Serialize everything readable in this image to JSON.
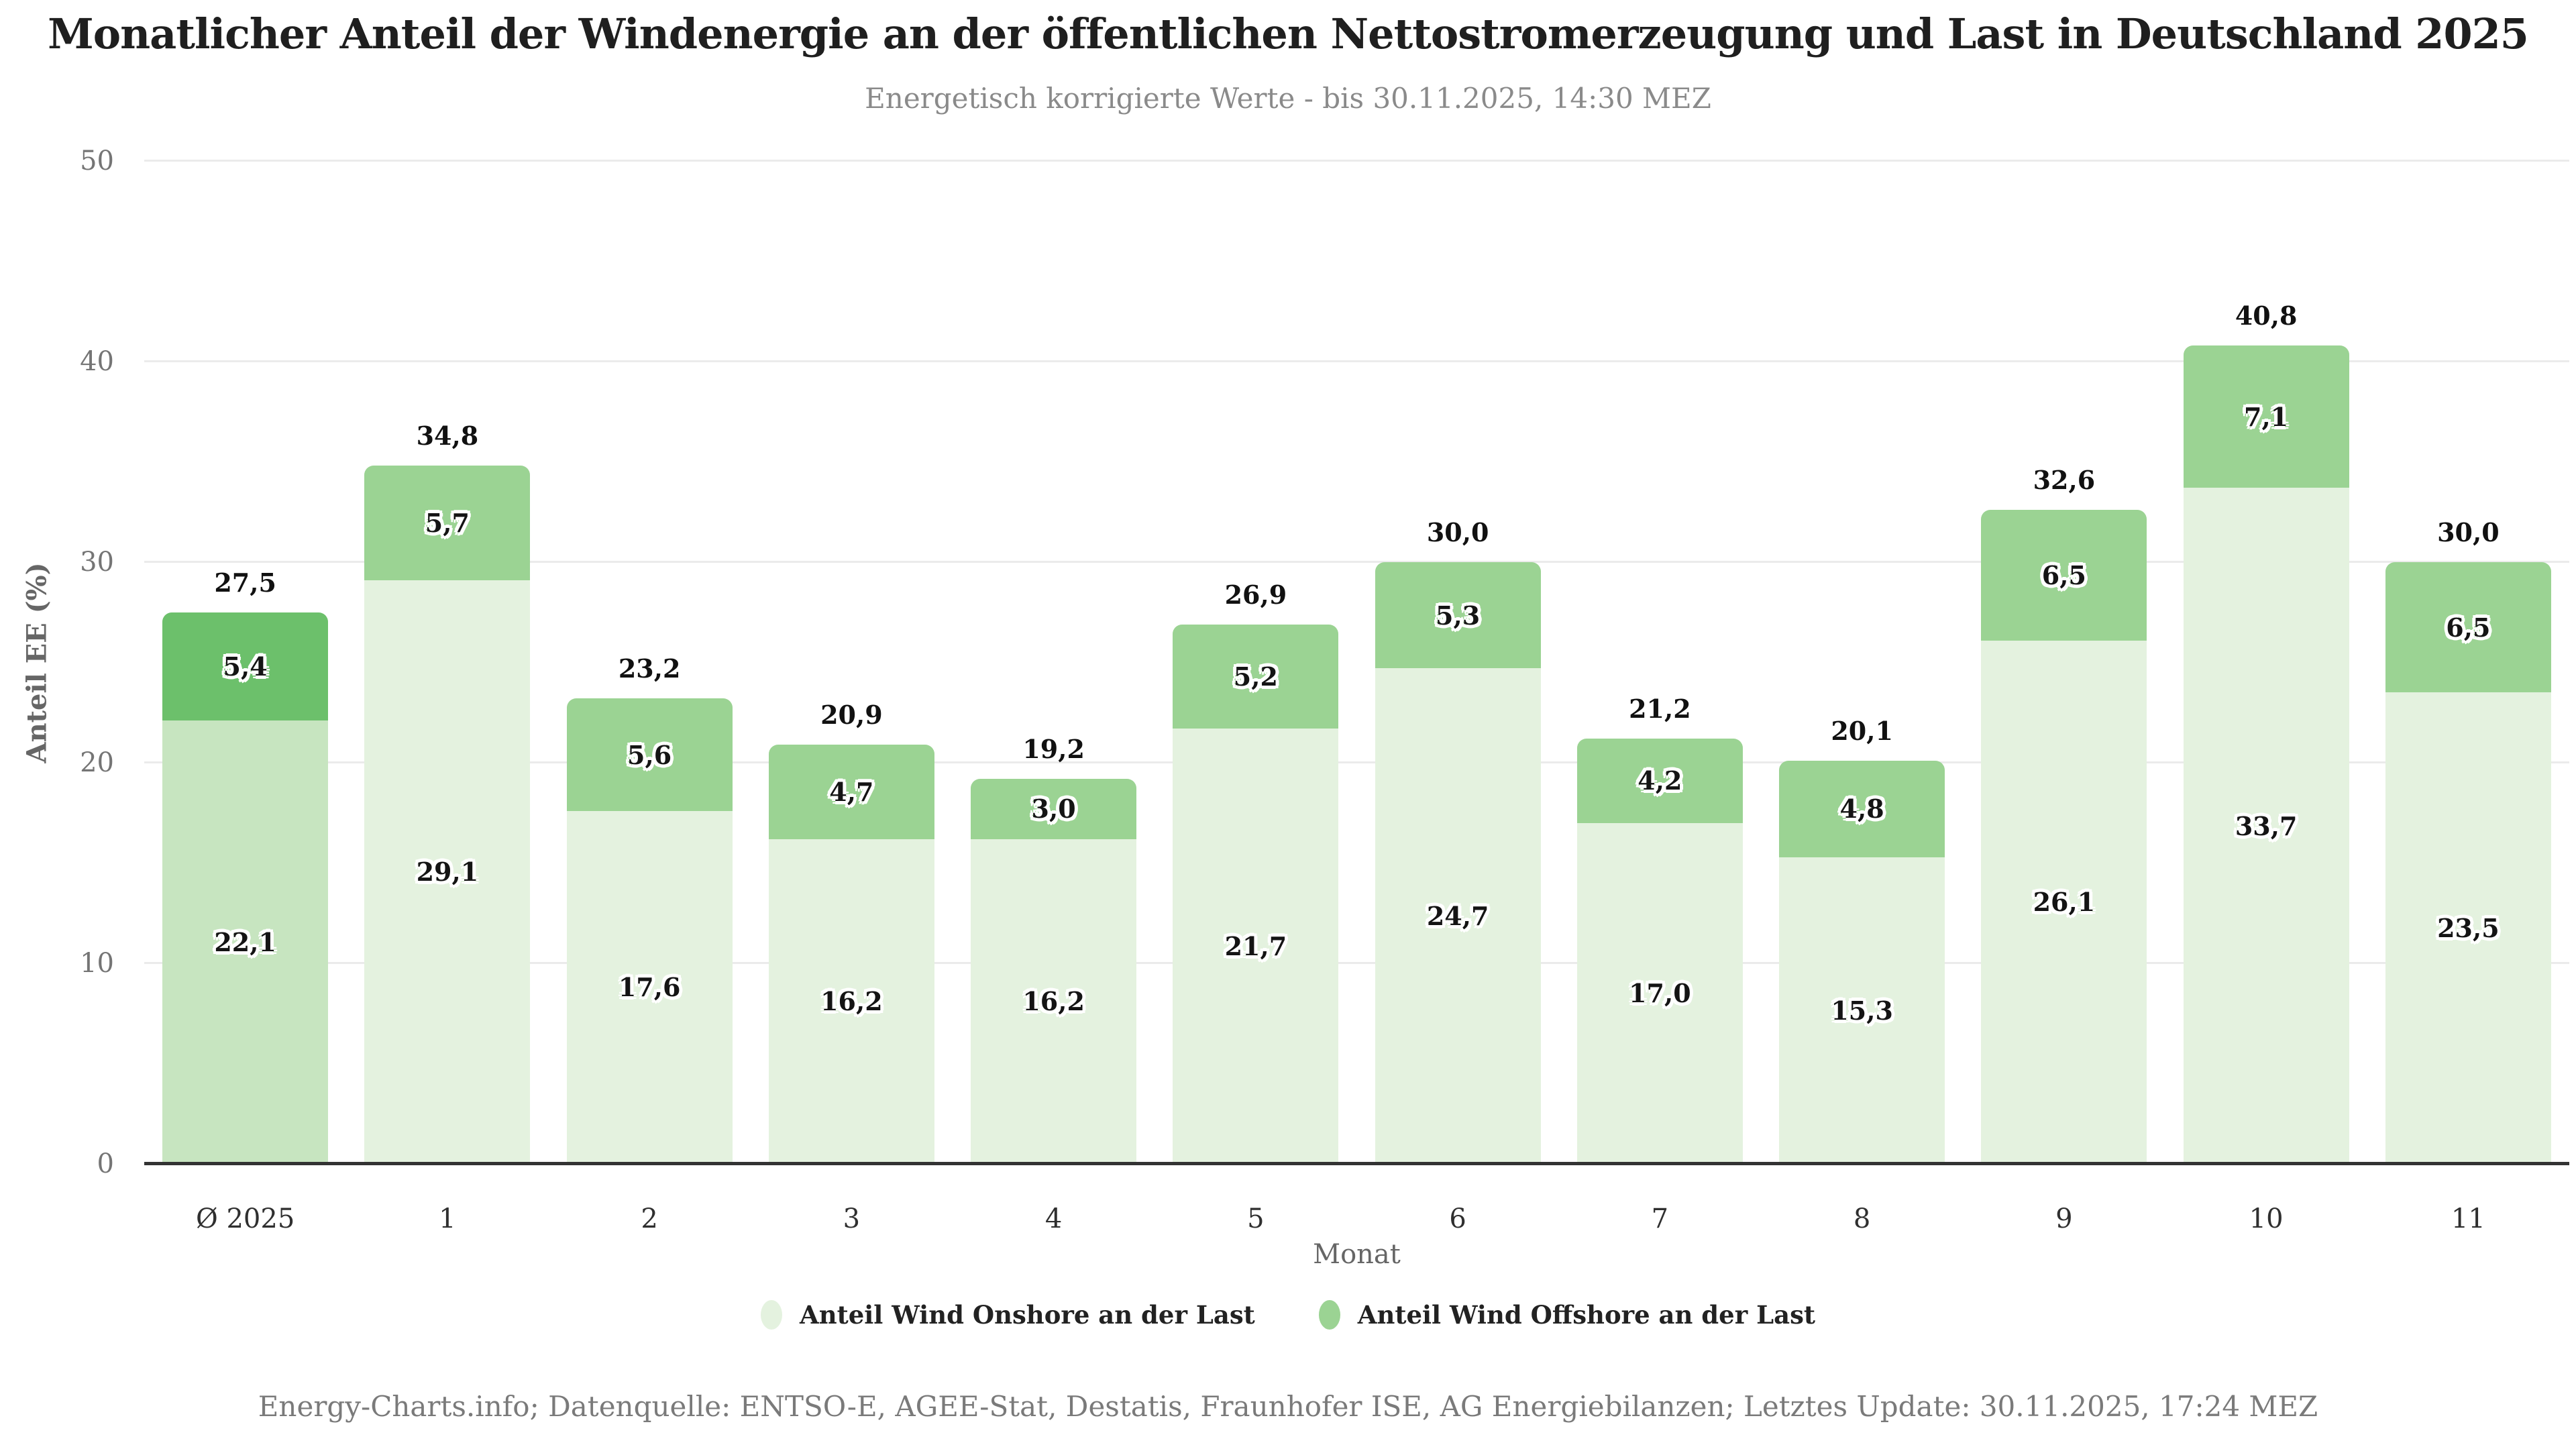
{
  "header": {
    "title": "Monatlicher Anteil der Windenergie an der öffentlichen Nettostromerzeugung und Last in Deutschland 2025",
    "subtitle": "Energetisch korrigierte Werte - bis 30.11.2025, 14:30 MEZ"
  },
  "chart_data": {
    "type": "bar",
    "stacked": true,
    "title": "Monatlicher Anteil der Windenergie an der öffentlichen Nettostromerzeugung und Last in Deutschland 2025",
    "subtitle": "Energetisch korrigierte Werte - bis 30.11.2025, 14:30 MEZ",
    "categories": [
      "Ø 2025",
      "1",
      "2",
      "3",
      "4",
      "5",
      "6",
      "7",
      "8",
      "9",
      "10",
      "11"
    ],
    "series": [
      {
        "name": "Anteil Wind Onshore an der Last",
        "values": [
          22.1,
          29.1,
          17.6,
          16.2,
          16.2,
          21.7,
          24.7,
          17.0,
          15.3,
          26.1,
          33.7,
          23.5
        ],
        "labels": [
          "22,1",
          "29,1",
          "17,6",
          "16,2",
          "16,2",
          "21,7",
          "24,7",
          "17,0",
          "15,3",
          "26,1",
          "33,7",
          "23,5"
        ],
        "color": "#e4f2df",
        "highlight_color": "#c7e5c0"
      },
      {
        "name": "Anteil Wind Offshore an der Last",
        "values": [
          5.4,
          5.7,
          5.6,
          4.7,
          3.0,
          5.2,
          5.3,
          4.2,
          4.8,
          6.5,
          7.1,
          6.5
        ],
        "labels": [
          "5,4",
          "5,7",
          "5,6",
          "4,7",
          "3,0",
          "5,2",
          "5,3",
          "4,2",
          "4,8",
          "6,5",
          "7,1",
          "6,5"
        ],
        "color": "#9bd393",
        "highlight_color": "#6cc06b"
      }
    ],
    "totals": [
      27.5,
      34.8,
      23.2,
      20.9,
      19.2,
      26.9,
      30.0,
      21.2,
      20.1,
      32.6,
      40.8,
      30.0
    ],
    "total_labels": [
      "27,5",
      "34,8",
      "23,2",
      "20,9",
      "19,2",
      "26,9",
      "30,0",
      "21,2",
      "20,1",
      "32,6",
      "40,8",
      "30,0"
    ],
    "xlabel": "Monat",
    "ylabel": "Anteil EE (%)",
    "ylim": [
      0,
      50
    ],
    "yticks": [
      0,
      10,
      20,
      30,
      40,
      50
    ],
    "grid": true,
    "legend_position": "bottom",
    "highlight_index": 0
  },
  "footer": {
    "attribution": "Energy-Charts.info; Datenquelle: ENTSO-E, AGEE-Stat, Destatis, Fraunhofer ISE, AG Energiebilanzen; Letztes Update: 30.11.2025, 17:24 MEZ"
  }
}
